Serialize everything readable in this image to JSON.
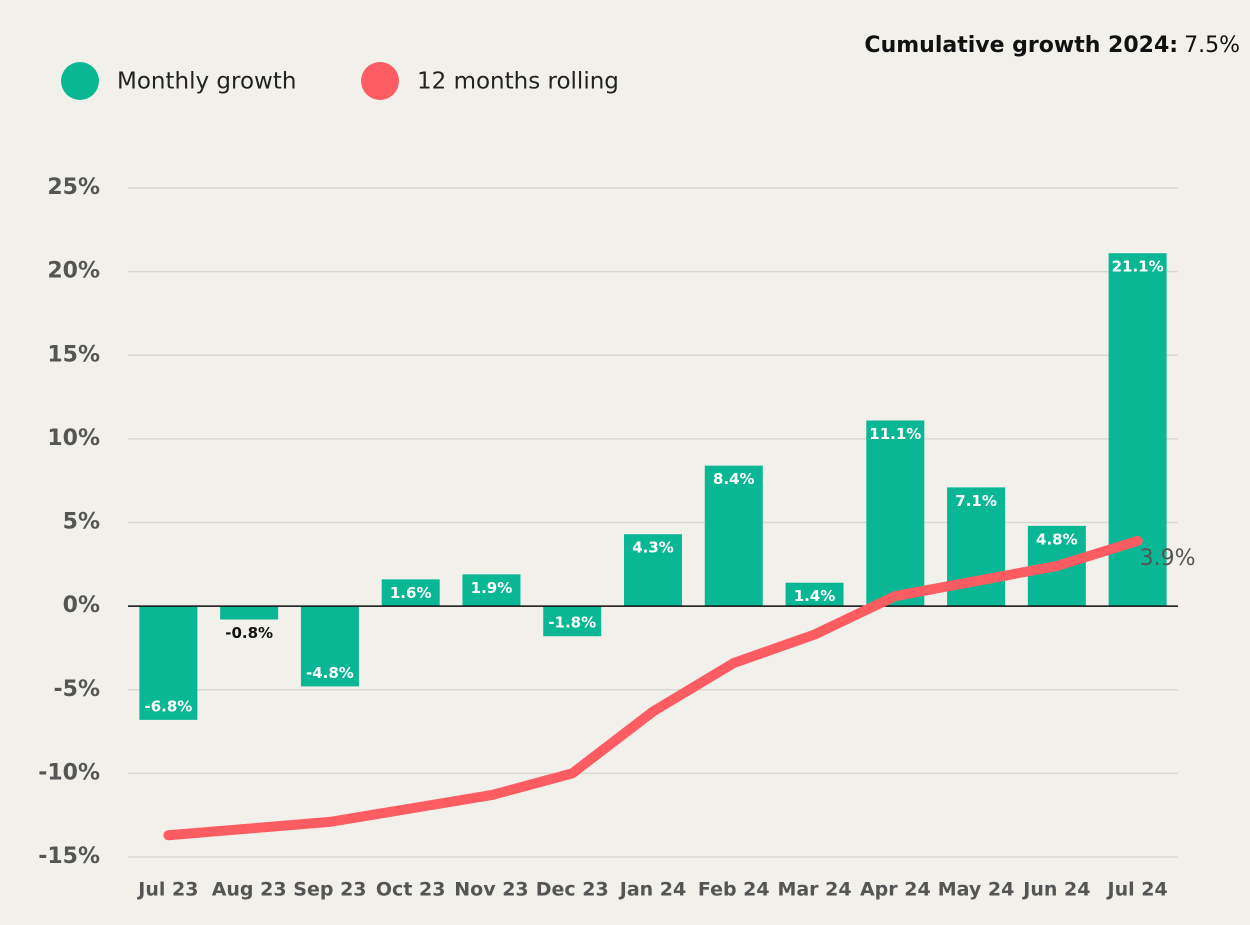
{
  "chart_data": {
    "type": "bar",
    "annotation_label": "Cumulative growth 2024:",
    "annotation_value": "7.5%",
    "categories": [
      "Jul 23",
      "Aug 23",
      "Sep 23",
      "Oct 23",
      "Nov 23",
      "Dec 23",
      "Jan 24",
      "Feb 24",
      "Mar 24",
      "Apr 24",
      "May 24",
      "Jun 24",
      "Jul 24"
    ],
    "series": [
      {
        "name": "Monthly growth",
        "type": "bar",
        "color": "#0ab794",
        "values": [
          -6.8,
          -0.8,
          -4.8,
          1.6,
          1.9,
          -1.8,
          4.3,
          8.4,
          1.4,
          11.1,
          7.1,
          4.8,
          21.1
        ],
        "value_labels": [
          "-6.8%",
          "-0.8%",
          "-4.8%",
          "1.6%",
          "1.9%",
          "-1.8%",
          "4.3%",
          "8.4%",
          "1.4%",
          "11.1%",
          "7.1%",
          "4.8%",
          "21.1%"
        ]
      },
      {
        "name": "12 months rolling",
        "type": "line",
        "color": "#fd5c63",
        "values": [
          -13.7,
          -13.3,
          -12.9,
          -12.1,
          -11.3,
          -10.0,
          -6.3,
          -3.4,
          -1.7,
          0.6,
          1.5,
          2.4,
          3.9
        ],
        "end_label": "3.9%"
      }
    ],
    "ylim": [
      -15,
      25
    ],
    "yticks": [
      {
        "value": -15,
        "label": "-15%"
      },
      {
        "value": -10,
        "label": "-10%"
      },
      {
        "value": -5,
        "label": "-5%"
      },
      {
        "value": 0,
        "label": "0%"
      },
      {
        "value": 5,
        "label": "5%"
      },
      {
        "value": 10,
        "label": "10%"
      },
      {
        "value": 15,
        "label": "15%"
      },
      {
        "value": 20,
        "label": "20%"
      },
      {
        "value": 25,
        "label": "25%"
      }
    ],
    "grid": true
  }
}
